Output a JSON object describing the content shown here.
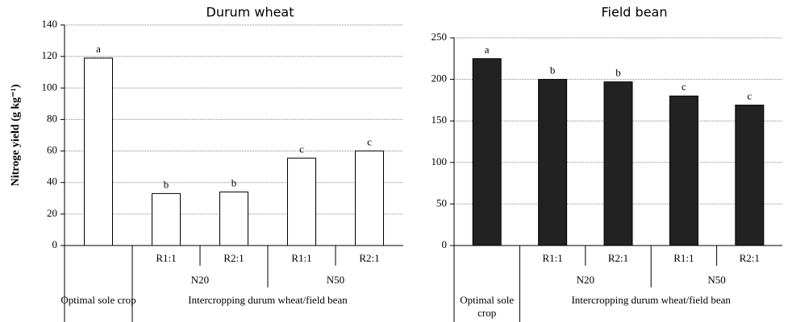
{
  "chart_data": [
    {
      "type": "bar",
      "title": "Durum wheat",
      "ylabel": "Nitroge yield  (g kg⁻¹)",
      "categories": [
        null,
        "R1:1",
        "R2:1",
        "R1:1",
        "R2:1"
      ],
      "values": [
        119,
        33,
        34,
        55.5,
        60
      ],
      "letters": [
        "a",
        "b",
        "b",
        "c",
        "c"
      ],
      "groups": [
        "N20",
        "N50"
      ],
      "sections": [
        "Optimal sole crop",
        "Intercropping durum wheat/field bean"
      ],
      "color": "#ffffff",
      "edgecolor": "#000000",
      "ylim": [
        0,
        140
      ],
      "yticks": [
        0,
        20,
        40,
        60,
        80,
        100,
        120,
        140
      ],
      "grid": true
    },
    {
      "type": "bar",
      "title": "Field bean",
      "categories": [
        null,
        "R1:1",
        "R2:1",
        "R1:1",
        "R2:1"
      ],
      "values": [
        225,
        200,
        197,
        180,
        169
      ],
      "letters": [
        "a",
        "b",
        "b",
        "c",
        "c"
      ],
      "groups": [
        "N20",
        "N50"
      ],
      "sections": [
        "Optimal sole crop",
        "Intercropping durum wheat/field bean"
      ],
      "color": "#222222",
      "edgecolor": "#000000",
      "ylim": [
        0,
        250
      ],
      "yticks": [
        0,
        50,
        100,
        150,
        200,
        250
      ],
      "grid": true
    }
  ]
}
